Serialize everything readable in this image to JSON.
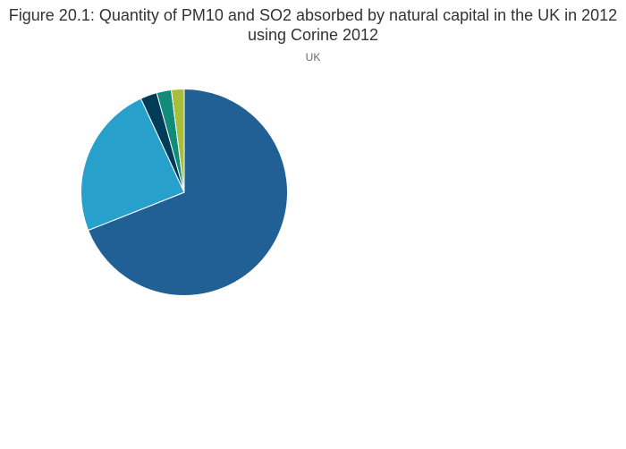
{
  "chart_data": {
    "type": "pie",
    "title": "Figure 20.1: Quantity of PM10 and SO2 absorbed by natural capital in the UK in 2012 using Corine 2012",
    "subtitle": "UK",
    "start": "top",
    "direction": "clockwise",
    "legend": "none",
    "slices": [
      {
        "value": 69.0,
        "color": "#206095"
      },
      {
        "value": 24.1,
        "color": "#27a0cc"
      },
      {
        "value": 2.6,
        "color": "#003c57"
      },
      {
        "value": 2.3,
        "color": "#118c7b"
      },
      {
        "value": 2.0,
        "color": "#a8bd3a"
      }
    ]
  }
}
